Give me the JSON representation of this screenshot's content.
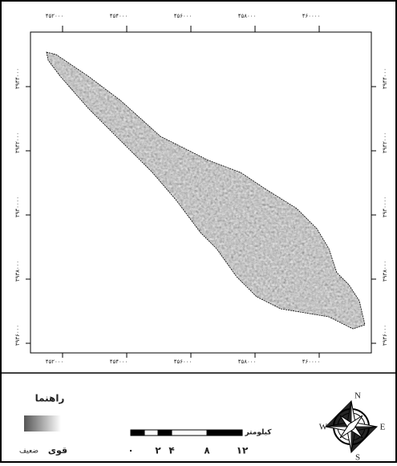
{
  "map": {
    "top_labels": [
      "۴۵۲۰۰۰",
      "۴۵۴۰۰۰",
      "۴۵۶۰۰۰",
      "۴۵۸۰۰۰",
      "۴۶۰۰۰۰"
    ],
    "bottom_labels": [
      "۴۵۲۰۰۰",
      "۴۵۴۰۰۰",
      "۴۵۶۰۰۰",
      "۴۵۸۰۰۰",
      "۴۶۰۰۰۰"
    ],
    "left_labels": [
      "۳۹۴۴۰۰۰",
      "۳۹۴۲۰۰۰",
      "۳۹۴۰۰۰۰",
      "۳۹۳۸۰۰۰",
      "۳۹۳۶۰۰۰"
    ],
    "right_labels": [
      "۳۹۴۴۰۰۰",
      "۳۹۴۲۰۰۰",
      "۳۹۴۰۰۰۰",
      "۳۹۳۸۰۰۰",
      "۳۹۳۶۰۰۰"
    ]
  },
  "legend": {
    "title": "راهنما",
    "low": "ضعیف",
    "high": "قوی"
  },
  "scale": {
    "unit": "کیلومتر",
    "labels": [
      "۰",
      "۲",
      "۴",
      "۸",
      "۱۲"
    ]
  },
  "compass": {
    "n": "N",
    "e": "E",
    "s": "S",
    "w": "W"
  }
}
